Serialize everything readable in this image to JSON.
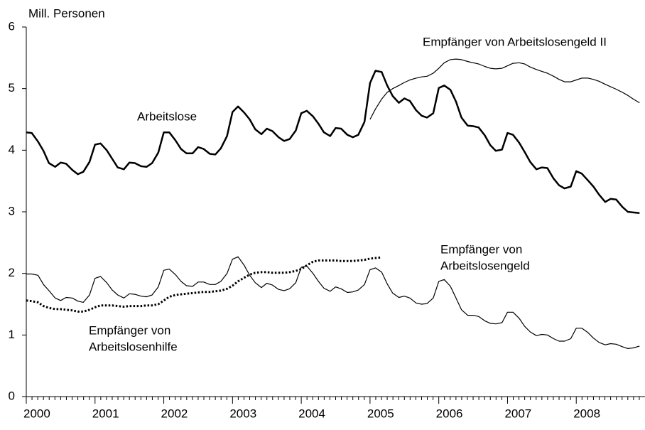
{
  "chart_data": {
    "type": "line",
    "y_label": "Mill. Personen",
    "xlim": [
      2000,
      2009
    ],
    "xticks": [
      2000,
      2001,
      2002,
      2003,
      2004,
      2005,
      2006,
      2007,
      2008
    ],
    "ylim": [
      0,
      6
    ],
    "yticks": [
      0,
      1,
      2,
      3,
      4,
      5,
      6
    ],
    "x": [
      2000,
      2000.08,
      2000.17,
      2000.25,
      2000.33,
      2000.42,
      2000.5,
      2000.58,
      2000.67,
      2000.75,
      2000.83,
      2000.92,
      2001,
      2001.08,
      2001.17,
      2001.25,
      2001.33,
      2001.42,
      2001.5,
      2001.58,
      2001.67,
      2001.75,
      2001.83,
      2001.92,
      2002,
      2002.08,
      2002.17,
      2002.25,
      2002.33,
      2002.42,
      2002.5,
      2002.58,
      2002.67,
      2002.75,
      2002.83,
      2002.92,
      2003,
      2003.08,
      2003.17,
      2003.25,
      2003.33,
      2003.42,
      2003.5,
      2003.58,
      2003.67,
      2003.75,
      2003.83,
      2003.92,
      2004,
      2004.08,
      2004.17,
      2004.25,
      2004.33,
      2004.42,
      2004.5,
      2004.58,
      2004.67,
      2004.75,
      2004.83,
      2004.92,
      2005,
      2005.08,
      2005.17,
      2005.25,
      2005.33,
      2005.42,
      2005.5,
      2005.58,
      2005.67,
      2005.75,
      2005.83,
      2005.92,
      2006,
      2006.08,
      2006.17,
      2006.25,
      2006.33,
      2006.42,
      2006.5,
      2006.58,
      2006.67,
      2006.75,
      2006.83,
      2006.92,
      2007,
      2007.08,
      2007.17,
      2007.25,
      2007.33,
      2007.42,
      2007.5,
      2007.58,
      2007.67,
      2007.75,
      2007.83,
      2007.92,
      2008,
      2008.08,
      2008.17,
      2008.25,
      2008.33,
      2008.42,
      2008.5,
      2008.58,
      2008.67,
      2008.75,
      2008.83,
      2008.92
    ],
    "series": [
      {
        "name": "Arbeitslose",
        "color": "#000000",
        "line_width": 2.5,
        "line_style": "solid",
        "values": [
          4.29,
          4.28,
          4.14,
          3.99,
          3.79,
          3.73,
          3.8,
          3.78,
          3.68,
          3.61,
          3.65,
          3.81,
          4.09,
          4.11,
          4.0,
          3.86,
          3.72,
          3.69,
          3.8,
          3.79,
          3.74,
          3.73,
          3.79,
          3.96,
          4.29,
          4.29,
          4.16,
          4.02,
          3.95,
          3.95,
          4.05,
          4.02,
          3.94,
          3.93,
          4.03,
          4.23,
          4.62,
          4.71,
          4.61,
          4.5,
          4.34,
          4.26,
          4.35,
          4.31,
          4.21,
          4.15,
          4.18,
          4.32,
          4.6,
          4.64,
          4.55,
          4.43,
          4.29,
          4.23,
          4.36,
          4.35,
          4.25,
          4.21,
          4.25,
          4.46,
          5.09,
          5.29,
          5.27,
          5.05,
          4.88,
          4.77,
          4.84,
          4.8,
          4.65,
          4.56,
          4.53,
          4.6,
          5.01,
          5.05,
          4.98,
          4.79,
          4.53,
          4.4,
          4.39,
          4.37,
          4.24,
          4.08,
          3.99,
          4.01,
          4.28,
          4.25,
          4.12,
          3.97,
          3.81,
          3.69,
          3.72,
          3.71,
          3.54,
          3.43,
          3.38,
          3.41,
          3.66,
          3.62,
          3.51,
          3.41,
          3.28,
          3.16,
          3.21,
          3.2,
          3.08,
          3.0,
          2.99,
          2.98
        ]
      },
      {
        "name": "Empfänger von Arbeitslosengeld II",
        "color": "#000000",
        "line_width": 1.2,
        "line_style": "solid",
        "values": [
          null,
          null,
          null,
          null,
          null,
          null,
          null,
          null,
          null,
          null,
          null,
          null,
          null,
          null,
          null,
          null,
          null,
          null,
          null,
          null,
          null,
          null,
          null,
          null,
          null,
          null,
          null,
          null,
          null,
          null,
          null,
          null,
          null,
          null,
          null,
          null,
          null,
          null,
          null,
          null,
          null,
          null,
          null,
          null,
          null,
          null,
          null,
          null,
          null,
          null,
          null,
          null,
          null,
          null,
          null,
          null,
          null,
          null,
          null,
          null,
          4.5,
          4.67,
          4.83,
          4.94,
          5.0,
          5.05,
          5.1,
          5.14,
          5.17,
          5.19,
          5.2,
          5.25,
          5.33,
          5.42,
          5.47,
          5.48,
          5.47,
          5.44,
          5.42,
          5.4,
          5.36,
          5.33,
          5.32,
          5.33,
          5.37,
          5.41,
          5.42,
          5.4,
          5.35,
          5.31,
          5.28,
          5.25,
          5.2,
          5.15,
          5.11,
          5.11,
          5.14,
          5.17,
          5.17,
          5.15,
          5.12,
          5.07,
          5.03,
          4.99,
          4.94,
          4.89,
          4.83,
          4.77
        ]
      },
      {
        "name": "Empfänger von Arbeitslosengeld",
        "color": "#000000",
        "line_width": 1.2,
        "line_style": "solid",
        "values": [
          1.99,
          1.99,
          1.97,
          1.82,
          1.72,
          1.6,
          1.56,
          1.61,
          1.6,
          1.55,
          1.53,
          1.65,
          1.92,
          1.95,
          1.85,
          1.73,
          1.65,
          1.6,
          1.67,
          1.66,
          1.63,
          1.62,
          1.65,
          1.78,
          2.05,
          2.07,
          1.98,
          1.87,
          1.8,
          1.79,
          1.86,
          1.86,
          1.82,
          1.82,
          1.87,
          2.0,
          2.23,
          2.27,
          2.13,
          1.97,
          1.85,
          1.77,
          1.84,
          1.81,
          1.74,
          1.72,
          1.75,
          1.85,
          2.1,
          2.12,
          2.0,
          1.87,
          1.76,
          1.71,
          1.78,
          1.75,
          1.69,
          1.7,
          1.73,
          1.82,
          2.06,
          2.09,
          2.02,
          1.83,
          1.68,
          1.61,
          1.63,
          1.6,
          1.52,
          1.5,
          1.51,
          1.6,
          1.87,
          1.9,
          1.79,
          1.6,
          1.41,
          1.32,
          1.32,
          1.3,
          1.23,
          1.19,
          1.18,
          1.2,
          1.37,
          1.37,
          1.27,
          1.14,
          1.05,
          0.99,
          1.01,
          1.0,
          0.94,
          0.9,
          0.9,
          0.94,
          1.11,
          1.11,
          1.04,
          0.95,
          0.88,
          0.84,
          0.86,
          0.85,
          0.81,
          0.78,
          0.79,
          0.82
        ]
      },
      {
        "name": "Empfänger von Arbeitslosenhilfe",
        "color": "#000000",
        "line_width": 3,
        "line_style": "dotted",
        "values": [
          1.56,
          1.55,
          1.53,
          1.47,
          1.44,
          1.42,
          1.42,
          1.41,
          1.4,
          1.38,
          1.38,
          1.41,
          1.45,
          1.48,
          1.48,
          1.48,
          1.47,
          1.46,
          1.47,
          1.47,
          1.47,
          1.48,
          1.48,
          1.5,
          1.56,
          1.62,
          1.65,
          1.66,
          1.67,
          1.68,
          1.69,
          1.7,
          1.7,
          1.71,
          1.72,
          1.75,
          1.8,
          1.87,
          1.93,
          1.98,
          2.01,
          2.02,
          2.02,
          2.01,
          2.01,
          2.01,
          2.02,
          2.04,
          2.07,
          2.13,
          2.19,
          2.21,
          2.21,
          2.21,
          2.21,
          2.2,
          2.2,
          2.2,
          2.21,
          2.22,
          2.24,
          2.25,
          2.26,
          null,
          null,
          null,
          null,
          null,
          null,
          null,
          null,
          null,
          null,
          null,
          null,
          null,
          null,
          null,
          null,
          null,
          null,
          null,
          null,
          null,
          null,
          null,
          null,
          null,
          null,
          null,
          null,
          null,
          null,
          null,
          null,
          null,
          null,
          null,
          null,
          null,
          null,
          null,
          null,
          null,
          null,
          null,
          null,
          null
        ]
      }
    ],
    "annotations": [
      [
        "Arbeitslose"
      ],
      [
        "Empfänger von Arbeitslosengeld II"
      ],
      [
        "Empfänger von",
        "Arbeitslosengeld"
      ],
      [
        "Empfänger von",
        "Arbeitslosenhilfe"
      ]
    ]
  }
}
